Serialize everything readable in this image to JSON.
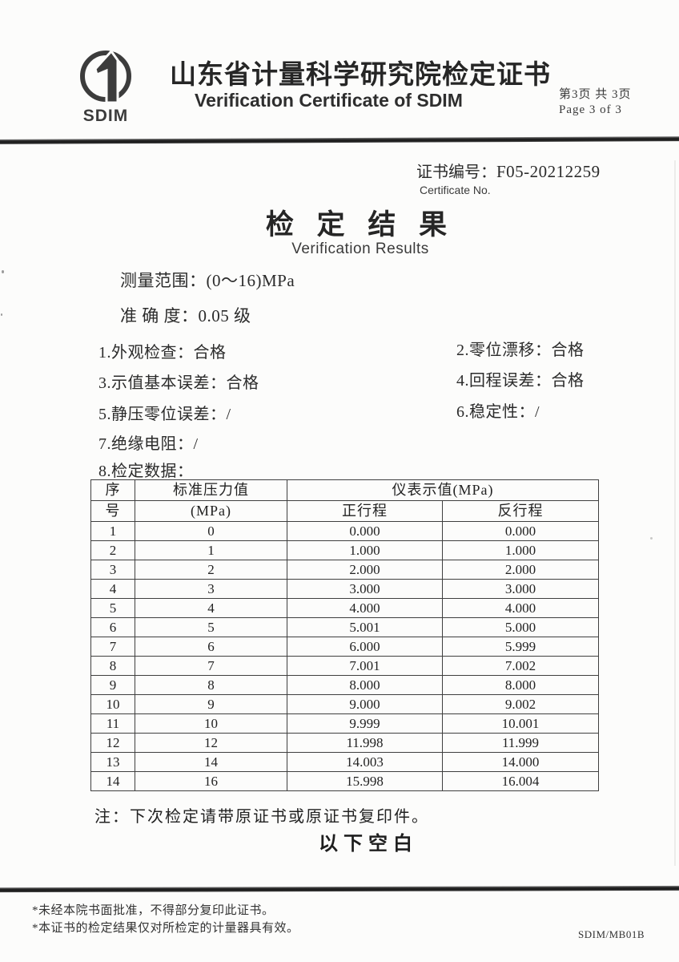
{
  "header": {
    "logo": "SDIM",
    "title_cn": "山东省计量科学研究院检定证书",
    "title_en": "Verification Certificate of SDIM",
    "page_cn": "第3页 共 3页",
    "page_en": "Page 3  of 3"
  },
  "certificate": {
    "label_cn": "证书编号：",
    "number": "F05-20212259",
    "label_en": "Certificate No."
  },
  "results": {
    "title_cn": "检 定 结 果",
    "title_en": "Verification Results",
    "range": "测量范围：(0～16)MPa",
    "accuracy": "准 确 度：0.05 级",
    "items": [
      "1.外观检查：合格",
      "2.零位漂移：合格",
      "3.示值基本误差：合格",
      "4.回程误差：合格",
      "5.静压零位误差：/",
      "6.稳定性：/",
      "7.绝缘电阻：/",
      "8.检定数据："
    ]
  },
  "table": {
    "h_seq_1": "序",
    "h_seq_2": "号",
    "h_std_1": "标准压力值",
    "h_std_2": "(MPa)",
    "h_indication": "仪表示值(MPa)",
    "h_forward": "正行程",
    "h_backward": "反行程",
    "rows": [
      [
        "1",
        "0",
        "0.000",
        "0.000"
      ],
      [
        "2",
        "1",
        "1.000",
        "1.000"
      ],
      [
        "3",
        "2",
        "2.000",
        "2.000"
      ],
      [
        "4",
        "3",
        "3.000",
        "3.000"
      ],
      [
        "5",
        "4",
        "4.000",
        "4.000"
      ],
      [
        "6",
        "5",
        "5.001",
        "5.000"
      ],
      [
        "7",
        "6",
        "6.000",
        "5.999"
      ],
      [
        "8",
        "7",
        "7.001",
        "7.002"
      ],
      [
        "9",
        "8",
        "8.000",
        "8.000"
      ],
      [
        "10",
        "9",
        "9.000",
        "9.002"
      ],
      [
        "11",
        "10",
        "9.999",
        "10.001"
      ],
      [
        "12",
        "12",
        "11.998",
        "11.999"
      ],
      [
        "13",
        "14",
        "14.003",
        "14.000"
      ],
      [
        "14",
        "16",
        "15.998",
        "16.004"
      ]
    ]
  },
  "note": "注：下次检定请带原证书或原证书复印件。",
  "blank_marker": "以下空白",
  "footer": {
    "note1": "*未经本院书面批准，不得部分复印此证书。",
    "note2": "*本证书的检定结果仅对所检定的计量器具有效。",
    "form_code": "SDIM/MB01B"
  }
}
